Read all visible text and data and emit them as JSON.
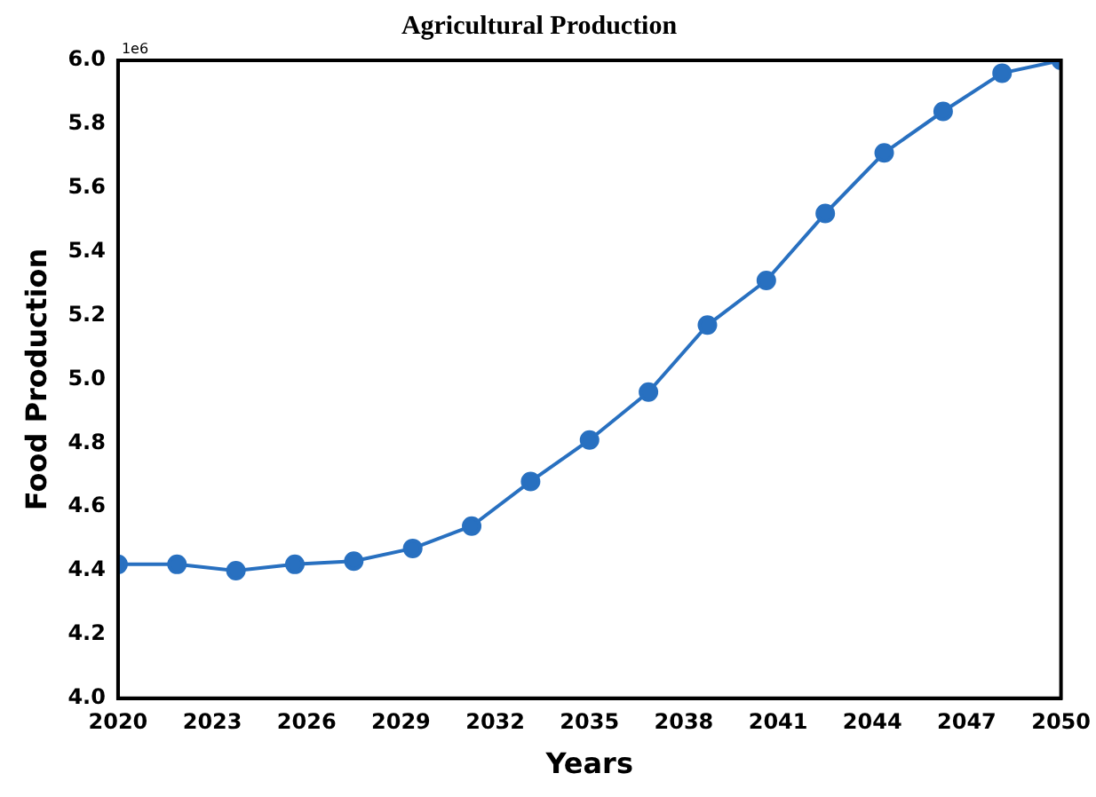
{
  "chart_data": {
    "type": "line",
    "title": "Agricultural Production",
    "xlabel": "Years",
    "ylabel": "Food Production",
    "annotations": [
      "1e6"
    ],
    "x": [
      2020,
      2021.875,
      2023.75,
      2025.625,
      2027.5,
      2029.375,
      2031.25,
      2033.125,
      2035,
      2036.875,
      2038.75,
      2040.625,
      2042.5,
      2044.375,
      2046.25,
      2048.125,
      2050
    ],
    "series": [
      {
        "color": "#2870c0",
        "values": [
          4.42,
          4.42,
          4.4,
          4.42,
          4.43,
          4.47,
          4.54,
          4.68,
          4.81,
          4.96,
          5.17,
          5.31,
          5.52,
          5.71,
          5.84,
          5.96,
          6.0
        ]
      }
    ],
    "xlim": [
      2020,
      2050
    ],
    "xticks": [
      2020,
      2023,
      2026,
      2029,
      2032,
      2035,
      2038,
      2041,
      2044,
      2047,
      2050
    ],
    "ylim": [
      4.0,
      6.0
    ],
    "yticks": [
      {
        "value": 4.0,
        "label": "4.0"
      },
      {
        "value": 4.2,
        "label": "4.2"
      },
      {
        "value": 4.4,
        "label": "4.4"
      },
      {
        "value": 4.6,
        "label": "4.6"
      },
      {
        "value": 4.8,
        "label": "4.8"
      },
      {
        "value": 5.0,
        "label": "5.0"
      },
      {
        "value": 5.2,
        "label": "5.2"
      },
      {
        "value": 5.4,
        "label": "5.4"
      },
      {
        "value": 5.6,
        "label": "5.6"
      },
      {
        "value": 5.8,
        "label": "5.8"
      },
      {
        "value": 6.0,
        "label": "6.0"
      }
    ],
    "grid": false,
    "legend": false,
    "marker": "circle",
    "line_style": "solid"
  }
}
